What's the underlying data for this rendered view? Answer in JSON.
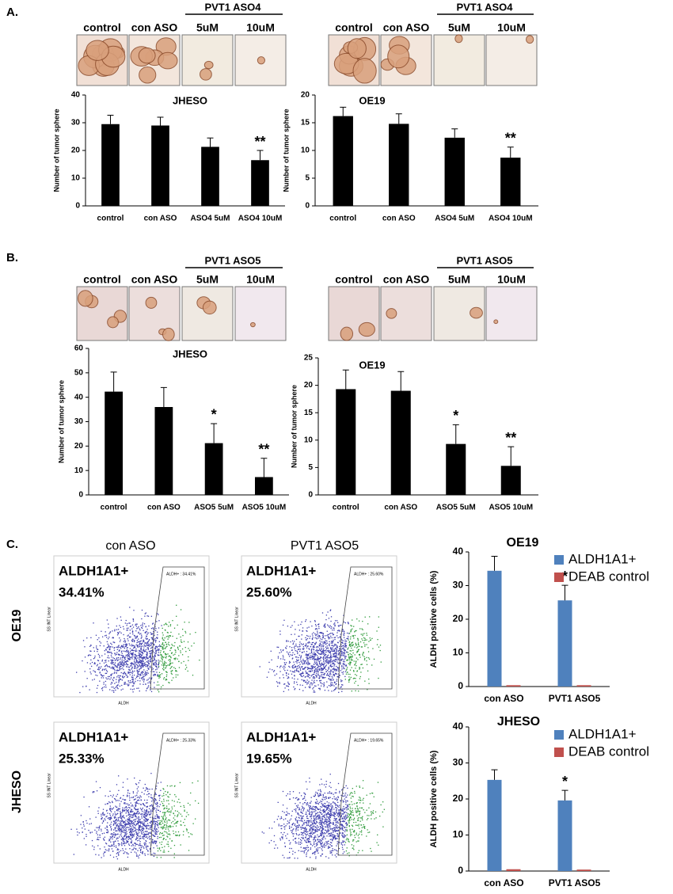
{
  "panels": [
    {
      "label": "A.",
      "groups": [
        {
          "header": "PVT1 ASO4",
          "image_labels": [
            "control",
            "con ASO",
            "5uM",
            "10uM"
          ]
        },
        {
          "header": "PVT1 ASO4",
          "image_labels": [
            "control",
            "con ASO",
            "5uM",
            "10uM"
          ]
        }
      ]
    },
    {
      "label": "B.",
      "groups": [
        {
          "header": "PVT1 ASO5",
          "image_labels": [
            "control",
            "con ASO",
            "5uM",
            "10uM"
          ]
        },
        {
          "header": "PVT1 ASO5",
          "image_labels": [
            "control",
            "con ASO",
            "5uM",
            "10uM"
          ]
        }
      ]
    },
    {
      "label": "C.",
      "columns": [
        "con ASO",
        "PVT1 ASO5"
      ],
      "rows": [
        "OE19",
        "JHESO"
      ],
      "flow": [
        {
          "marker": "ALDH1A1+",
          "percent": "34.41%",
          "gate": "ALDH+ : 34.41%",
          "x_label": "ALDH",
          "y_label": "SS INT Linear"
        },
        {
          "marker": "ALDH1A1+",
          "percent": "25.60%",
          "gate": "ALDH+ : 25.60%",
          "x_label": "ALDH",
          "y_label": "SS INT Linear"
        },
        {
          "marker": "ALDH1A1+",
          "percent": "25.33%",
          "gate": "ALDH+ : 25.33%",
          "x_label": "ALDH",
          "y_label": "SS INT Linear"
        },
        {
          "marker": "ALDH1A1+",
          "percent": "19.65%",
          "gate": "ALDH+ : 19.65%",
          "x_label": "ALDH",
          "y_label": "SS INT Linear"
        }
      ]
    }
  ],
  "chart_data": [
    {
      "type": "bar",
      "title": "JHESO",
      "y_label": "Number of tumor sphere",
      "color": "#000000",
      "categories": [
        "control",
        "con ASO",
        "ASO4 5uM",
        "ASO4 10uM"
      ],
      "values": [
        29.5,
        29,
        21.3,
        16.5
      ],
      "errors": [
        3.2,
        3,
        3.2,
        3.5
      ],
      "annotations": [
        {
          "category": "ASO4 10uM",
          "text": "**"
        }
      ],
      "ylim": [
        0,
        40
      ],
      "yticks": [
        0,
        10,
        20,
        30,
        40
      ]
    },
    {
      "type": "bar",
      "title": "OE19",
      "y_label": "Number of tumor sphere",
      "color": "#000000",
      "categories": [
        "control",
        "con ASO",
        "ASO4 5uM",
        "ASO4 10uM"
      ],
      "values": [
        16.2,
        14.8,
        12.3,
        8.7
      ],
      "errors": [
        1.6,
        1.8,
        1.6,
        1.9
      ],
      "annotations": [
        {
          "category": "ASO4 10uM",
          "text": "**"
        }
      ],
      "ylim": [
        0,
        20
      ],
      "yticks": [
        0,
        5,
        10,
        15,
        20
      ]
    },
    {
      "type": "bar",
      "title": "JHESO",
      "y_label": "Number of tumor sphere",
      "color": "#000000",
      "categories": [
        "control",
        "con ASO",
        "ASO5 5uM",
        "ASO5 10uM"
      ],
      "values": [
        42.3,
        36,
        21.2,
        7.3
      ],
      "errors": [
        8,
        8,
        8,
        7.7
      ],
      "annotations": [
        {
          "category": "ASO5 5uM",
          "text": "*"
        },
        {
          "category": "ASO5 10uM",
          "text": "**"
        }
      ],
      "ylim": [
        0,
        60
      ],
      "yticks": [
        0,
        10,
        20,
        30,
        40,
        50,
        60
      ]
    },
    {
      "type": "bar",
      "title": "OE19",
      "y_label": "Number of tumor sphere",
      "color": "#000000",
      "categories": [
        "control",
        "con ASO",
        "ASO5 5uM",
        "ASO5 10uM"
      ],
      "values": [
        19.3,
        19,
        9.3,
        5.3
      ],
      "errors": [
        3.5,
        3.5,
        3.5,
        3.5
      ],
      "annotations": [
        {
          "category": "ASO5 5uM",
          "text": "*"
        },
        {
          "category": "ASO5 10uM",
          "text": "**"
        }
      ],
      "ylim": [
        0,
        25
      ],
      "yticks": [
        0,
        5,
        10,
        15,
        20,
        25
      ]
    },
    {
      "type": "bar",
      "title": "OE19",
      "y_label": "ALDH positive cells (%)",
      "categories": [
        "con ASO",
        "PVT1 ASO5"
      ],
      "series": [
        {
          "name": "ALDH1A1+",
          "color": "#4f81bd",
          "values": [
            34.4,
            25.6
          ],
          "errors": [
            4.3,
            4.5
          ]
        },
        {
          "name": "DEAB control",
          "color": "#c0504d",
          "values": [
            0.4,
            0.4
          ]
        }
      ],
      "annotations": [
        {
          "category": "PVT1 ASO5",
          "text": "*"
        }
      ],
      "ylim": [
        0,
        40
      ],
      "yticks": [
        0,
        10,
        20,
        30,
        40
      ],
      "legend": "top-right"
    },
    {
      "type": "bar",
      "title": "JHESO",
      "y_label": "ALDH positive cells (%)",
      "categories": [
        "con ASO",
        "PVT1 ASO5"
      ],
      "series": [
        {
          "name": "ALDH1A1+",
          "color": "#4f81bd",
          "values": [
            25.3,
            19.6
          ],
          "errors": [
            2.8,
            2.8
          ]
        },
        {
          "name": "DEAB control",
          "color": "#c0504d",
          "values": [
            0.5,
            0.4
          ]
        }
      ],
      "annotations": [
        {
          "category": "PVT1 ASO5",
          "text": "*"
        }
      ],
      "ylim": [
        0,
        40
      ],
      "yticks": [
        0,
        10,
        20,
        30,
        40
      ],
      "legend": "top-right"
    }
  ]
}
